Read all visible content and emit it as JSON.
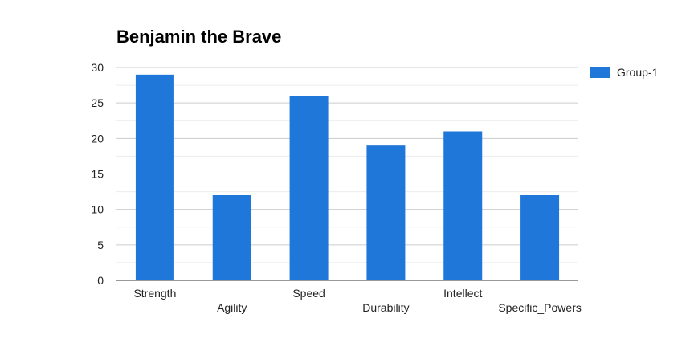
{
  "chart_data": {
    "type": "bar",
    "title": "Benjamin the Brave",
    "categories": [
      "Strength",
      "Agility",
      "Speed",
      "Durability",
      "Intellect",
      "Specific_Powers"
    ],
    "series": [
      {
        "name": "Group-1",
        "values": [
          29,
          12,
          26,
          19,
          21,
          12
        ],
        "color": "#1f77d9"
      }
    ],
    "ylim": [
      0,
      30
    ],
    "yticks": [
      0,
      5,
      10,
      15,
      20,
      25,
      30
    ],
    "grid": true,
    "legend_position": "right"
  }
}
